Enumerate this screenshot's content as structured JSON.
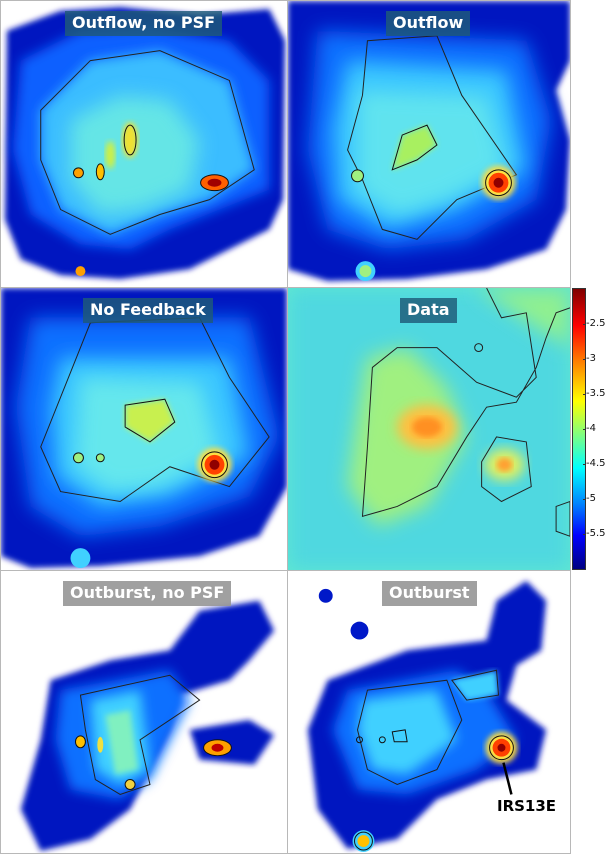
{
  "panels": {
    "top_left": {
      "title": "Outflow, no PSF"
    },
    "top_right": {
      "title": "Outflow"
    },
    "mid_left": {
      "title": "No Feedback"
    },
    "mid_right": {
      "title": "Data"
    },
    "bottom_left": {
      "title": "Outburst, no PSF"
    },
    "bottom_right": {
      "title": "Outburst",
      "annotation": "IRS13E"
    }
  },
  "colorbar": {
    "ticks": [
      "-2.5",
      "-3",
      "-3.5",
      "-4",
      "-4.5",
      "-5",
      "-5.5"
    ],
    "colors": [
      "#800000",
      "#ff0000",
      "#ff8000",
      "#ffff00",
      "#80ff80",
      "#00ffff",
      "#0080ff",
      "#0000ff",
      "#000080"
    ]
  },
  "colors": {
    "label_teal": "#1e5a78",
    "label_gray": "#969696",
    "background_blue": "#0018c8",
    "core_red": "#ff0000"
  }
}
